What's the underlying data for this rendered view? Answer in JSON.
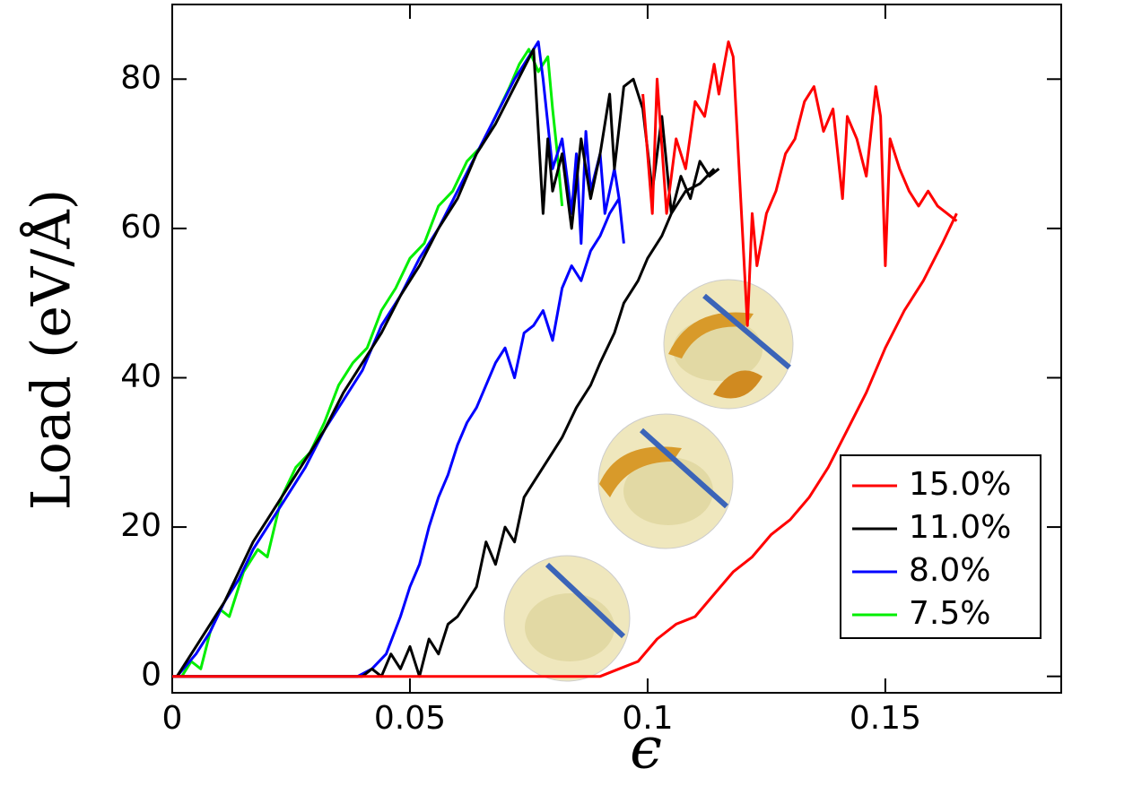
{
  "chart_data": {
    "type": "line",
    "y_label": "Load (eV/Å)",
    "x_label": "ϵ",
    "xlim": [
      0,
      0.187
    ],
    "ylim": [
      -2.2,
      90
    ],
    "xticks": [
      0,
      0.05,
      0.1,
      0.15
    ],
    "yticks": [
      0,
      20,
      40,
      60,
      80
    ],
    "legend": "lower right",
    "series": [
      {
        "name": "15.0%",
        "color": "#ff0000",
        "x": [
          0,
          0.04,
          0.09,
          0.094,
          0.098,
          0.102,
          0.106,
          0.11,
          0.114,
          0.118,
          0.122,
          0.126,
          0.13,
          0.134,
          0.138,
          0.142,
          0.146,
          0.15,
          0.154,
          0.158,
          0.162,
          0.165,
          null,
          0.099,
          0.101,
          0.102,
          0.104,
          0.106,
          0.108,
          0.11,
          0.112,
          0.114,
          0.115,
          0.117,
          0.118,
          0.121,
          0.122,
          0.123,
          0.125,
          0.127,
          0.129,
          0.131,
          0.133,
          0.135,
          0.137,
          0.139,
          0.141,
          0.142,
          0.144,
          0.146,
          0.148,
          0.149,
          0.15,
          0.151,
          0.153,
          0.155,
          0.157,
          0.159,
          0.161,
          0.163,
          0.165
        ],
        "values": [
          0,
          0,
          0,
          1,
          2,
          5,
          7,
          8,
          11,
          14,
          16,
          19,
          21,
          24,
          28,
          33,
          38,
          44,
          49,
          53,
          58,
          62,
          null,
          78,
          62,
          80,
          62,
          72,
          68,
          77,
          75,
          82,
          78,
          85,
          83,
          47,
          62,
          55,
          62,
          65,
          70,
          72,
          77,
          79,
          73,
          76,
          64,
          75,
          72,
          67,
          79,
          75,
          55,
          72,
          68,
          65,
          63,
          65,
          63,
          62,
          61
        ]
      },
      {
        "name": "11.0%",
        "color": "#000000",
        "x": [
          0.001,
          0.005,
          0.008,
          0.011,
          0.014,
          0.017,
          0.02,
          0.024,
          0.028,
          0.032,
          0.036,
          0.04,
          0.044,
          0.048,
          0.052,
          0.056,
          0.06,
          0.064,
          0.068,
          0.072,
          0.076,
          0.078,
          0.079,
          0.08,
          0.082,
          0.084,
          0.086,
          0.088,
          0.09,
          0.092,
          0.093,
          0.095,
          0.097,
          0.099,
          0.101,
          0.103,
          0.105,
          0.107,
          0.109,
          0.111,
          0.113,
          0.115,
          null,
          0,
          0.02,
          0.04,
          0.042,
          0.044,
          0.046,
          0.048,
          0.05,
          0.052,
          0.054,
          0.056,
          0.058,
          0.06,
          0.064,
          0.066,
          0.068,
          0.07,
          0.072,
          0.074,
          0.076,
          0.078,
          0.08,
          0.082,
          0.085,
          0.088,
          0.09,
          0.093,
          0.095,
          0.098,
          0.1,
          0.103,
          0.105,
          0.108,
          0.111,
          0.114
        ],
        "values": [
          0,
          4,
          7,
          10,
          14,
          18,
          21,
          25,
          29,
          33,
          38,
          42,
          46,
          51,
          55,
          60,
          64,
          70,
          74,
          79,
          84,
          62,
          72,
          65,
          70,
          60,
          72,
          64,
          70,
          78,
          68,
          79,
          80,
          76,
          65,
          75,
          62,
          67,
          64,
          69,
          67,
          68,
          null,
          0,
          0,
          0,
          1,
          0,
          3,
          1,
          4,
          0,
          5,
          3,
          7,
          8,
          12,
          18,
          15,
          20,
          18,
          24,
          26,
          28,
          30,
          32,
          36,
          39,
          42,
          46,
          50,
          53,
          56,
          59,
          62,
          65,
          66,
          68
        ]
      },
      {
        "name": "8.0%",
        "color": "#0000ff",
        "x": [
          0.001,
          0.005,
          0.008,
          0.011,
          0.014,
          0.017,
          0.02,
          0.024,
          0.028,
          0.032,
          0.036,
          0.04,
          0.044,
          0.048,
          0.052,
          0.056,
          0.06,
          0.064,
          0.068,
          0.072,
          0.075,
          0.077,
          0.078,
          0.08,
          0.082,
          0.084,
          0.085,
          0.086,
          0.087,
          0.088,
          0.09,
          0.091,
          0.093,
          0.094,
          0.095,
          null,
          0,
          0.02,
          0.039,
          0.042,
          0.045,
          0.048,
          0.05,
          0.052,
          0.054,
          0.056,
          0.058,
          0.06,
          0.062,
          0.064,
          0.066,
          0.068,
          0.07,
          0.072,
          0.074,
          0.076,
          0.078,
          0.08,
          0.082,
          0.084,
          0.086,
          0.088,
          0.09,
          0.092,
          0.094
        ],
        "values": [
          0,
          3,
          6,
          10,
          13,
          17,
          20,
          24,
          28,
          33,
          37,
          41,
          47,
          51,
          56,
          60,
          65,
          70,
          75,
          80,
          83,
          85,
          80,
          68,
          72,
          62,
          70,
          58,
          73,
          65,
          70,
          62,
          68,
          64,
          58,
          null,
          0,
          0,
          0,
          1,
          3,
          8,
          12,
          15,
          20,
          24,
          27,
          31,
          34,
          36,
          39,
          42,
          44,
          40,
          46,
          47,
          49,
          45,
          52,
          55,
          53,
          57,
          59,
          62,
          64
        ]
      },
      {
        "name": "7.5%",
        "color": "#00ee00",
        "x": [
          0.002,
          0.004,
          0.006,
          0.008,
          0.01,
          0.012,
          0.015,
          0.018,
          0.02,
          0.023,
          0.026,
          0.029,
          0.032,
          0.035,
          0.038,
          0.041,
          0.044,
          0.047,
          0.05,
          0.053,
          0.056,
          0.059,
          0.062,
          0.065,
          0.068,
          0.071,
          0.073,
          0.075,
          0.077,
          0.079,
          0.08,
          0.081,
          0.082
        ],
        "values": [
          0,
          2,
          1,
          6,
          9,
          8,
          14,
          17,
          16,
          24,
          28,
          30,
          34,
          39,
          42,
          44,
          49,
          52,
          56,
          58,
          63,
          65,
          69,
          71,
          75,
          79,
          82,
          84,
          81,
          83,
          76,
          70,
          63
        ]
      }
    ]
  }
}
